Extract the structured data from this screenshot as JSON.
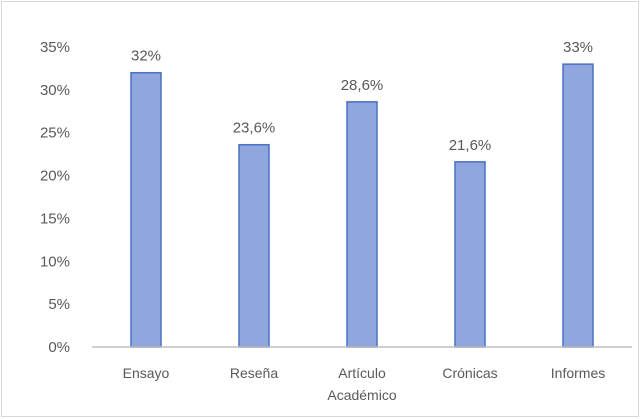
{
  "chart_data": {
    "type": "bar",
    "categories": [
      [
        "Ensayo"
      ],
      [
        "Reseña"
      ],
      [
        "Artículo",
        "Académico"
      ],
      [
        "Crónicas"
      ],
      [
        "Informes"
      ]
    ],
    "values": [
      32,
      23.6,
      28.6,
      21.6,
      33
    ],
    "data_labels": [
      "32%",
      "23,6%",
      "28,6%",
      "21,6%",
      "33%"
    ],
    "y_ticks": [
      0,
      5,
      10,
      15,
      20,
      25,
      30,
      35
    ],
    "y_tick_labels": [
      "0%",
      "5%",
      "10%",
      "15%",
      "20%",
      "25%",
      "30%",
      "35%"
    ],
    "ylim": [
      0,
      35
    ],
    "grid": false,
    "legend": "none",
    "bar_color": "#8fa6dc",
    "bar_border_color": "#4a70c4",
    "axis_color": "#bfbfbf"
  }
}
